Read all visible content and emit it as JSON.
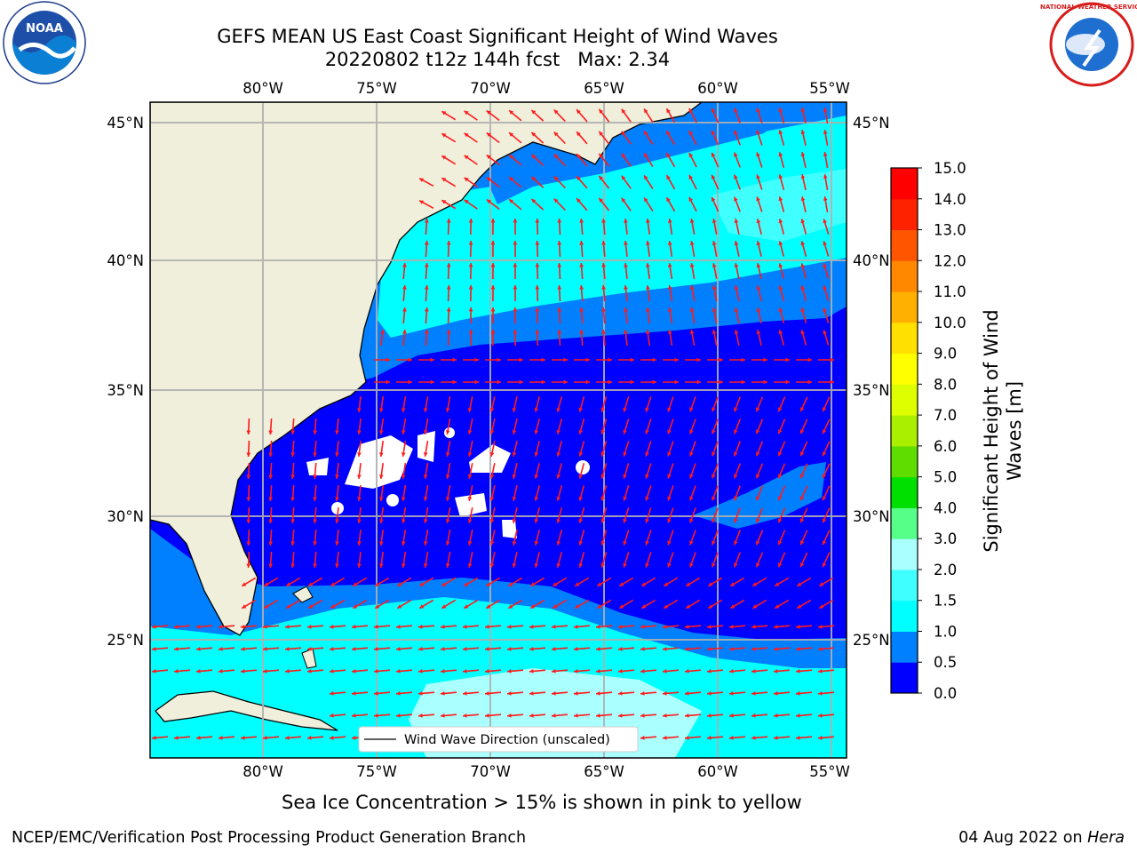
{
  "title": {
    "line1": "GEFS MEAN US East Coast Significant Height of Wind Waves",
    "line2": "20220802 t12z 144h fcst   Max: 2.34"
  },
  "map": {
    "lon_range": [
      -85,
      -54.5
    ],
    "lat_range": [
      20.5,
      46
    ],
    "lon_ticks": [
      "80°W",
      "75°W",
      "70°W",
      "65°W",
      "60°W",
      "55°W"
    ],
    "lat_ticks": [
      "45°N",
      "40°N",
      "35°N",
      "30°N",
      "25°N"
    ],
    "grid": true,
    "land_color": "#efefdc",
    "arrow_color": "#ff1a1a",
    "legend_label": "Wind Wave Direction (unscaled)"
  },
  "colorbar": {
    "label": "Significant Height of Wind Waves [m]",
    "label_line1": "Significant Height of Wind",
    "label_line2": "Waves [m]",
    "ticks": [
      "0.0",
      "0.5",
      "1.0",
      "1.5",
      "2.0",
      "3.0",
      "4.0",
      "5.0",
      "6.0",
      "7.0",
      "8.0",
      "9.0",
      "10.0",
      "11.0",
      "12.0",
      "13.0",
      "14.0",
      "15.0"
    ],
    "colors": [
      "#0000ff",
      "#0080ff",
      "#00ffff",
      "#40ffff",
      "#aaffff",
      "#55ff88",
      "#00e000",
      "#60dd00",
      "#aaee00",
      "#ddff00",
      "#ffff00",
      "#ffe000",
      "#ffb000",
      "#ff8800",
      "#ff5500",
      "#ff2200",
      "#ff0000"
    ]
  },
  "logos": {
    "left": "NOAA",
    "right": "NATIONAL WEATHER SERVICE",
    "left_ring": "NATIONAL OCEANIC AND ATMOSPHERIC ADMINISTRATION · U.S. DEPARTMENT OF COMMERCE"
  },
  "ice_note": "Sea Ice Concentration > 15% is shown in pink to yellow",
  "footer": {
    "left": "NCEP/EMC/Verification Post Processing Product Generation Branch",
    "right_date": "04 Aug 2022 on ",
    "right_host": "Hera"
  }
}
